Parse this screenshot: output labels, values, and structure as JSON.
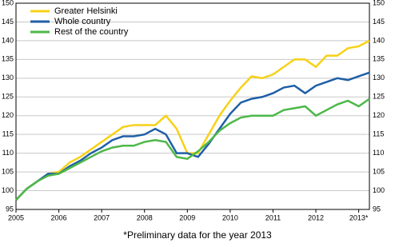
{
  "chart_data": {
    "type": "line",
    "x": [
      2005,
      2005.25,
      2005.5,
      2005.75,
      2006,
      2006.25,
      2006.5,
      2006.75,
      2007,
      2007.25,
      2007.5,
      2007.75,
      2008,
      2008.25,
      2008.5,
      2008.75,
      2009,
      2009.25,
      2009.5,
      2009.75,
      2010,
      2010.25,
      2010.5,
      2010.75,
      2011,
      2011.25,
      2011.5,
      2011.75,
      2012,
      2012.25,
      2012.5,
      2012.75,
      2013,
      2013.25
    ],
    "series": [
      {
        "name": "Greater Helsinki",
        "color": "#f7d117",
        "values": [
          97.5,
          100.5,
          102.5,
          104.5,
          105,
          107.5,
          109,
          111,
          113,
          115,
          117,
          117.5,
          117.5,
          117.5,
          120,
          116.5,
          110,
          110,
          115,
          120,
          124,
          127.5,
          130.5,
          130,
          131,
          133,
          135,
          135,
          133,
          136,
          136,
          138,
          138.5,
          140
        ]
      },
      {
        "name": "Whole country",
        "color": "#1f5fa6",
        "values": [
          97.5,
          100.5,
          102.5,
          104.5,
          104.5,
          106.5,
          108,
          110,
          111.5,
          113.5,
          114.5,
          114.5,
          115,
          116.5,
          115,
          110,
          110,
          109,
          112.5,
          116.5,
          120.5,
          123.5,
          124.5,
          125,
          126,
          127.5,
          128,
          126,
          128,
          129,
          130,
          129.5,
          130.5,
          131.5
        ]
      },
      {
        "name": "Rest of the country",
        "color": "#4db848",
        "values": [
          97.5,
          100.5,
          102.5,
          104,
          104.5,
          106,
          107.5,
          109,
          110.5,
          111.5,
          112,
          112,
          113,
          113.5,
          113,
          109,
          108.5,
          110.5,
          113,
          116,
          118,
          119.5,
          120,
          120,
          120,
          121.5,
          122,
          122.5,
          120,
          121.5,
          123,
          124,
          122.5,
          124.5
        ]
      }
    ],
    "xlim": [
      2005,
      2013.25
    ],
    "xticks": [
      2005,
      2006,
      2007,
      2008,
      2009,
      2010,
      2011,
      2012,
      {
        "value": 2013,
        "label": "2013*"
      }
    ],
    "ylim": [
      95,
      150
    ],
    "yticks": [
      95,
      100,
      105,
      110,
      115,
      120,
      125,
      130,
      135,
      140,
      145,
      150
    ],
    "grid": true,
    "legend": "top-left",
    "footnote": "*Preliminary data for the year 2013"
  }
}
